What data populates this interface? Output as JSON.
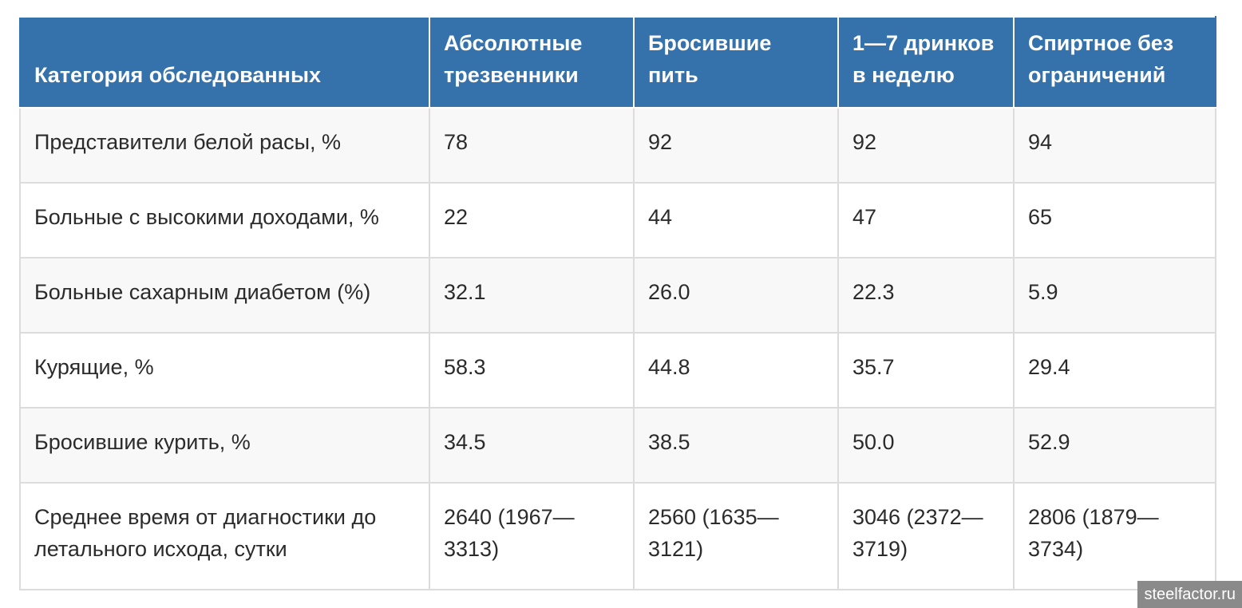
{
  "table": {
    "headers": [
      "Категория обследованных",
      "Абсолютные трезвенники",
      "Бросившие пить",
      "1—7 дринков в неделю",
      "Спиртное без ограничений"
    ],
    "rows": [
      [
        "Представители белой расы, %",
        "78",
        "92",
        "92",
        "94"
      ],
      [
        "Больные с высокими доходами, %",
        "22",
        "44",
        "47",
        "65"
      ],
      [
        "Больные сахарным диабетом (%)",
        "32.1",
        "26.0",
        "22.3",
        "5.9"
      ],
      [
        "Курящие, %",
        "58.3",
        "44.8",
        "35.7",
        "29.4"
      ],
      [
        "Бросившие курить, %",
        "34.5",
        "38.5",
        "50.0",
        "52.9"
      ],
      [
        "Среднее время от диагностики до летального исхода, сутки",
        "2640 (1967—3313)",
        "2560 (1635—3121)",
        "3046 (2372—3719)",
        "2806 (1879—3734)"
      ]
    ]
  },
  "watermark": "steelfactor.ru",
  "colors": {
    "header_bg": "#3572ab",
    "header_text": "#ffffff",
    "row_odd_bg": "#f8f8f8",
    "row_even_bg": "#ffffff",
    "border": "#dcdcdc"
  }
}
